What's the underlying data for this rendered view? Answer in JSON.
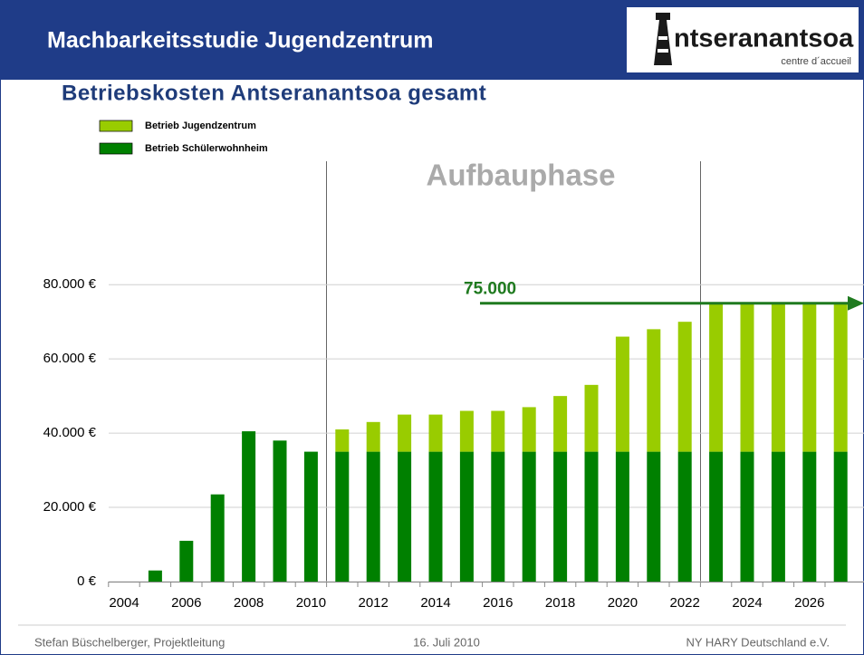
{
  "header": {
    "title": "Machbarkeitsstudie Jugendzentrum",
    "logo": "ntseranantsoa",
    "logo_subtitle": "centre d´accueil"
  },
  "chart_data": {
    "type": "bar",
    "stacked": true,
    "title": "Betriebskosten Antseranantsoa gesamt",
    "annotation": "Aufbauphase",
    "reference_line": {
      "value": 75000,
      "label": "75.000"
    },
    "categories": [
      "2004",
      null,
      "2006",
      null,
      "2008",
      null,
      "2010",
      null,
      "2012",
      null,
      "2014",
      null,
      "2016",
      null,
      "2018",
      null,
      "2020",
      null,
      "2022",
      null,
      "2024",
      null,
      "2026",
      null
    ],
    "series": [
      {
        "name": "Betrieb Jugendzentrum",
        "color": "#99cc00",
        "values": [
          0,
          0,
          0,
          0,
          0,
          0,
          0,
          6000,
          8000,
          10000,
          10000,
          11000,
          11000,
          12000,
          15000,
          18000,
          31000,
          33000,
          35000,
          40000,
          40000,
          40000,
          40000,
          40000
        ]
      },
      {
        "name": "Betrieb Schülerwohnheim",
        "color": "#008000",
        "values": [
          0,
          3000,
          11000,
          23500,
          40500,
          38000,
          35000,
          35000,
          35000,
          35000,
          35000,
          35000,
          35000,
          35000,
          35000,
          35000,
          35000,
          35000,
          35000,
          35000,
          35000,
          35000,
          35000,
          35000
        ]
      }
    ],
    "ylim": [
      0,
      113000
    ],
    "yticks": [
      {
        "value": 0,
        "label": "0 €"
      },
      {
        "value": 20000,
        "label": "20.000 €"
      },
      {
        "value": 40000,
        "label": "40.000 €"
      },
      {
        "value": 60000,
        "label": "60.000 €"
      },
      {
        "value": 80000,
        "label": "80.000 €"
      }
    ],
    "grid": true
  },
  "footer": {
    "left": "Stefan Büschelberger, Projektleitung",
    "center": "16. Juli 2010",
    "right": "NY HARY Deutschland e.V."
  }
}
